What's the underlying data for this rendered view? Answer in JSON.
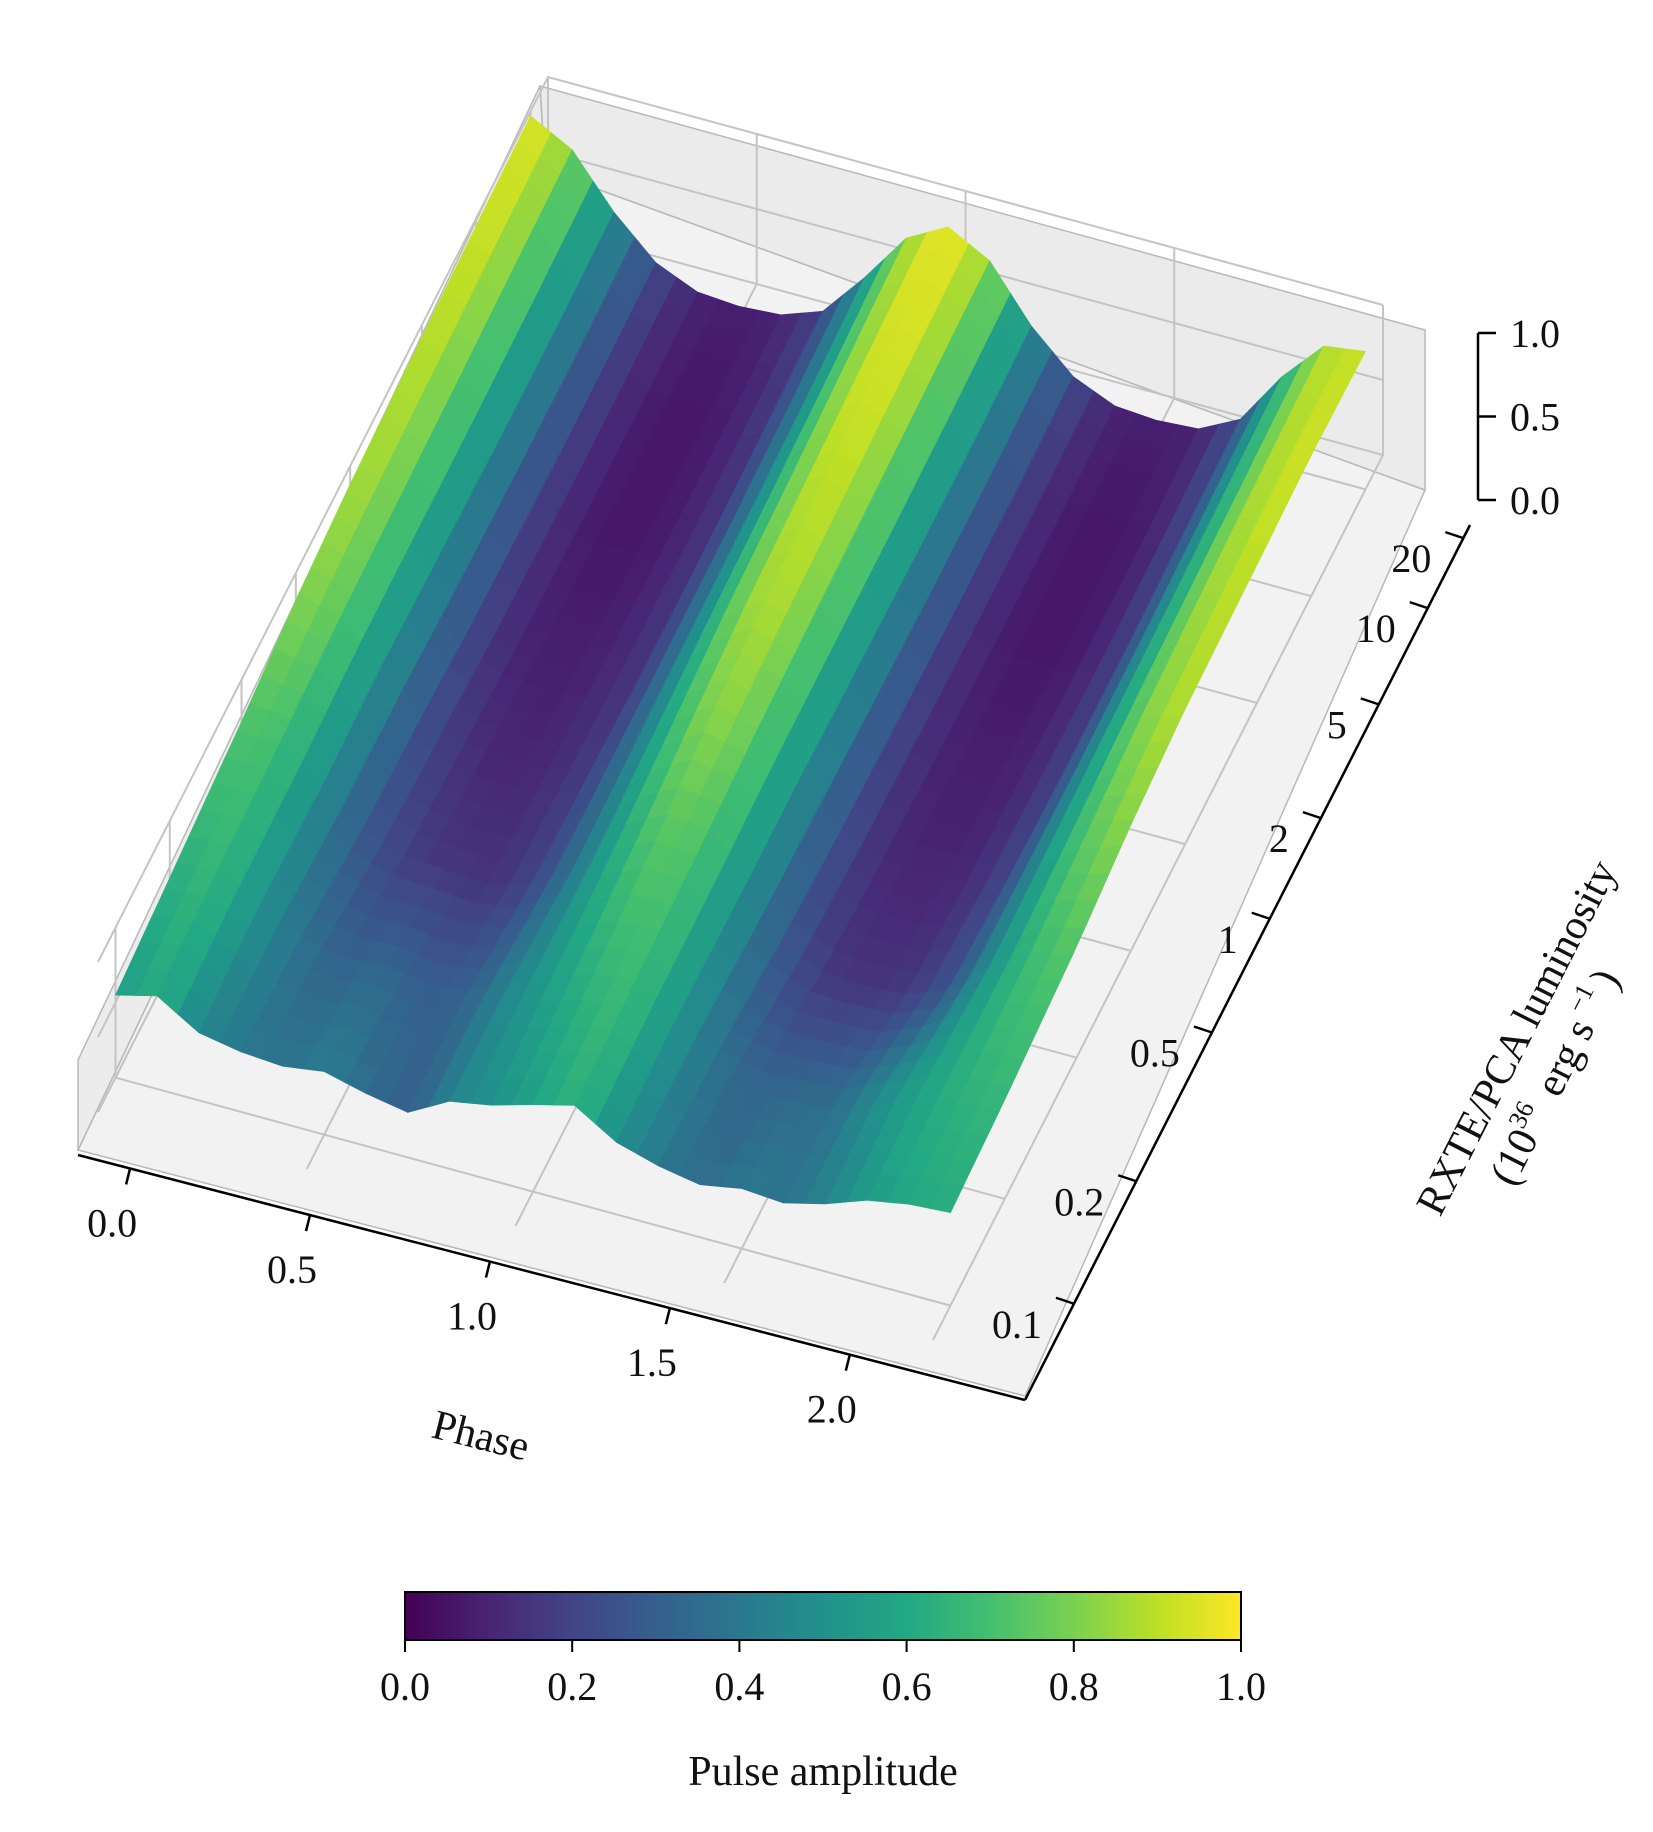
{
  "chart_data": {
    "type": "surface",
    "title": "",
    "x_axis": {
      "label": "Phase",
      "range": [
        0.0,
        2.0
      ],
      "ticks": [
        0.0,
        0.5,
        1.0,
        1.5,
        2.0
      ],
      "tick_labels": [
        "0.0",
        "0.5",
        "1.0",
        "1.5",
        "2.0"
      ]
    },
    "y_axis": {
      "label": "RXTE/PCA luminosity",
      "label_units": [
        "(10",
        "36",
        "erg s",
        "−1",
        ")"
      ],
      "scale": "log",
      "range": [
        0.08,
        25
      ],
      "ticks": [
        0.1,
        0.2,
        0.5,
        1,
        2,
        5,
        10,
        20
      ],
      "tick_labels": [
        "0.1",
        "0.2",
        "0.5",
        "1",
        "2",
        "5",
        "10",
        "20"
      ]
    },
    "z_axis": {
      "range": [
        0.0,
        1.0
      ],
      "ticks": [
        0.0,
        0.5,
        1.0
      ],
      "tick_labels": [
        "0.0",
        "0.5",
        "1.0"
      ]
    },
    "colorbar": {
      "label": "Pulse amplitude",
      "colormap": "viridis",
      "range": [
        0.0,
        1.0
      ],
      "ticks": [
        0.0,
        0.2,
        0.4,
        0.6,
        0.8,
        1.0
      ],
      "tick_labels": [
        "0.0",
        "0.2",
        "0.4",
        "0.6",
        "0.8",
        "1.0"
      ]
    },
    "surface": {
      "description_of_values": "z = normalized pulse amplitude vs phase and luminosity; two pulse cycles with peaks near phase 0.05 and 1.05",
      "phase_samples": [
        0.0,
        0.1,
        0.2,
        0.3,
        0.4,
        0.5,
        0.6,
        0.7,
        0.8,
        0.9,
        1.0,
        1.1,
        1.2,
        1.3,
        1.4,
        1.5,
        1.6,
        1.7,
        1.8,
        1.9,
        2.0
      ],
      "luminosity_samples": [
        0.1,
        0.2,
        0.5,
        1,
        2,
        5,
        10,
        20
      ],
      "z": [
        [
          0.55,
          0.62,
          0.45,
          0.4,
          0.38,
          0.42,
          0.35,
          0.3,
          0.45,
          0.5,
          0.58,
          0.65,
          0.48,
          0.4,
          0.35,
          0.4,
          0.38,
          0.45,
          0.55,
          0.6,
          0.62
        ],
        [
          0.62,
          0.66,
          0.5,
          0.38,
          0.32,
          0.35,
          0.3,
          0.32,
          0.45,
          0.55,
          0.64,
          0.68,
          0.52,
          0.38,
          0.32,
          0.34,
          0.36,
          0.48,
          0.58,
          0.64,
          0.66
        ],
        [
          0.72,
          0.7,
          0.48,
          0.28,
          0.18,
          0.15,
          0.14,
          0.2,
          0.38,
          0.6,
          0.74,
          0.72,
          0.5,
          0.28,
          0.16,
          0.14,
          0.16,
          0.26,
          0.5,
          0.68,
          0.74
        ],
        [
          0.82,
          0.74,
          0.5,
          0.26,
          0.14,
          0.1,
          0.12,
          0.18,
          0.4,
          0.66,
          0.84,
          0.76,
          0.5,
          0.24,
          0.12,
          0.1,
          0.12,
          0.22,
          0.52,
          0.74,
          0.84
        ],
        [
          0.88,
          0.76,
          0.48,
          0.22,
          0.1,
          0.08,
          0.1,
          0.16,
          0.42,
          0.72,
          0.9,
          0.78,
          0.48,
          0.22,
          0.1,
          0.08,
          0.1,
          0.2,
          0.54,
          0.8,
          0.9
        ],
        [
          0.92,
          0.78,
          0.46,
          0.2,
          0.08,
          0.06,
          0.08,
          0.16,
          0.44,
          0.76,
          0.94,
          0.8,
          0.46,
          0.2,
          0.08,
          0.06,
          0.08,
          0.2,
          0.56,
          0.84,
          0.92
        ],
        [
          0.95,
          0.8,
          0.46,
          0.2,
          0.08,
          0.06,
          0.08,
          0.18,
          0.46,
          0.8,
          0.97,
          0.82,
          0.46,
          0.2,
          0.08,
          0.06,
          0.08,
          0.22,
          0.58,
          0.86,
          0.94
        ],
        [
          0.97,
          0.82,
          0.48,
          0.22,
          0.1,
          0.08,
          0.1,
          0.2,
          0.5,
          0.84,
          0.99,
          0.84,
          0.48,
          0.22,
          0.1,
          0.08,
          0.1,
          0.24,
          0.6,
          0.88,
          0.92
        ]
      ]
    }
  }
}
